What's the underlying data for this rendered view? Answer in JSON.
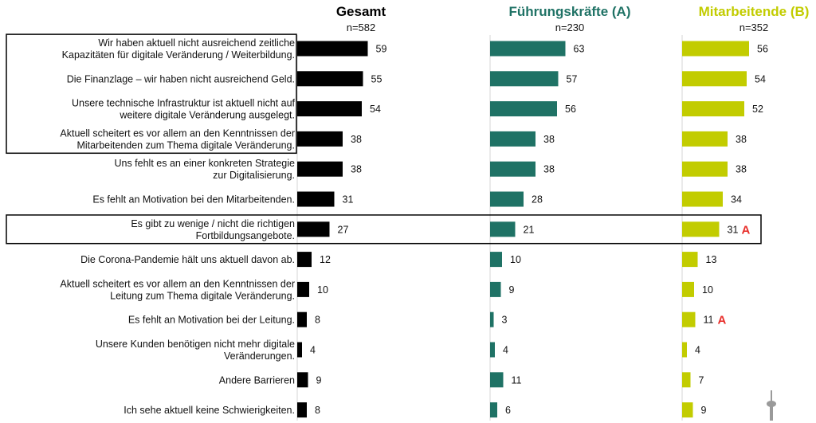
{
  "colors": {
    "gesamt": "#000000",
    "fuehrung": "#1f7265",
    "mitarbeitende": "#c2cc00",
    "significance": "#e8302c",
    "axis": "#d4d4d4",
    "highlight_box": "#000000"
  },
  "icon": "tower-icon",
  "chart_data": {
    "type": "bar",
    "orientation": "horizontal",
    "categories": [
      [
        "Wir haben aktuell nicht ausreichend zeitliche",
        "Kapazitäten für digitale Veränderung / Weiterbildung."
      ],
      [
        "Die Finanzlage – wir haben nicht ausreichend Geld."
      ],
      [
        "Unsere technische Infrastruktur ist aktuell nicht auf",
        "weitere digitale Veränderung ausgelegt."
      ],
      [
        "Aktuell scheitert es vor allem an den Kenntnissen der",
        "Mitarbeitenden zum Thema digitale Veränderung."
      ],
      [
        "Uns fehlt es an einer konkreten Strategie",
        "zur Digitalisierung."
      ],
      [
        "Es fehlt an Motivation bei den Mitarbeitenden."
      ],
      [
        "Es gibt zu wenige / nicht die richtigen",
        "Fortbildungsangebote."
      ],
      [
        "Die Corona-Pandemie hält uns aktuell davon ab."
      ],
      [
        "Aktuell scheitert es vor allem an den Kenntnissen der",
        "Leitung zum Thema digitale Veränderung."
      ],
      [
        "Es fehlt an Motivation bei der Leitung."
      ],
      [
        "Unsere Kunden benötigen nicht mehr digitale",
        "Veränderungen."
      ],
      [
        "Andere Barrieren"
      ],
      [
        "Ich sehe aktuell keine Schwierigkeiten."
      ]
    ],
    "series": [
      {
        "name": "Gesamt",
        "n_label": "n=582",
        "color_key": "gesamt",
        "values": [
          59,
          55,
          54,
          38,
          38,
          31,
          27,
          12,
          10,
          8,
          4,
          9,
          8
        ],
        "markers": [
          "",
          "",
          "",
          "",
          "",
          "",
          "",
          "",
          "",
          "",
          "",
          "",
          ""
        ]
      },
      {
        "name": "Führungskräfte (A)",
        "n_label": "n=230",
        "color_key": "fuehrung",
        "values": [
          63,
          57,
          56,
          38,
          38,
          28,
          21,
          10,
          9,
          3,
          4,
          11,
          6
        ],
        "markers": [
          "",
          "",
          "",
          "",
          "",
          "",
          "",
          "",
          "",
          "",
          "",
          "",
          ""
        ]
      },
      {
        "name": "Mitarbeitende (B)",
        "n_label": "n=352",
        "color_key": "mitarbeitende",
        "values": [
          56,
          54,
          52,
          38,
          38,
          34,
          31,
          13,
          10,
          11,
          4,
          7,
          9
        ],
        "markers": [
          "",
          "",
          "",
          "",
          "",
          "",
          "A",
          "",
          "",
          "A",
          "",
          "",
          ""
        ]
      }
    ],
    "highlight_groups": [
      {
        "rows": [
          0,
          3
        ],
        "scope": "labels"
      },
      {
        "rows": [
          6,
          6
        ],
        "scope": "full-row"
      }
    ]
  }
}
